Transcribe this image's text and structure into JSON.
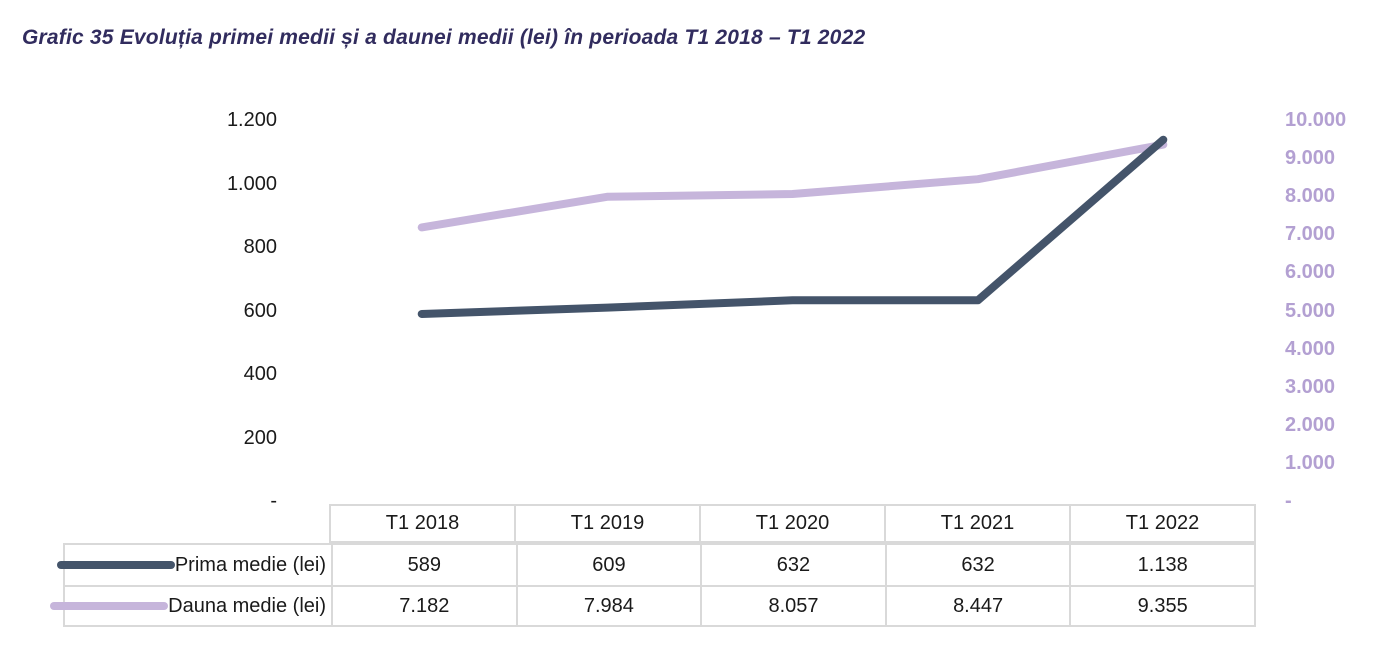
{
  "title": {
    "text": "Grafic 35 Evoluția primei medii și a daunei medii (lei) în perioada T1 2018 – T1 2022",
    "color": "#312c5e"
  },
  "chart_data": {
    "type": "line",
    "title": "Grafic 35 Evoluția primei medii și a daunei medii (lei) în perioada T1 2018 – T1 2022",
    "categories": [
      "T1 2018",
      "T1 2019",
      "T1 2020",
      "T1 2021",
      "T1 2022"
    ],
    "series": [
      {
        "name": "Prima medie (lei)",
        "axis": "left",
        "color": "#44546a",
        "values": [
          589,
          609,
          632,
          632,
          1138
        ],
        "value_labels": [
          "589",
          "609",
          "632",
          "632",
          "1.138"
        ]
      },
      {
        "name": "Dauna medie (lei)",
        "axis": "right",
        "color": "#c6b5db",
        "values": [
          7182,
          7984,
          8057,
          8447,
          9355
        ],
        "value_labels": [
          "7.182",
          "7.984",
          "8.057",
          "8.447",
          "9.355"
        ]
      }
    ],
    "left_axis": {
      "min": 0,
      "max": 1200,
      "step": 200,
      "tick_labels": [
        "-",
        "200",
        "400",
        "600",
        "800",
        "1.000",
        "1.200"
      ],
      "color": "#1a1a1a"
    },
    "right_axis": {
      "min": 0,
      "max": 10000,
      "step": 1000,
      "tick_labels": [
        "-",
        "1.000",
        "2.000",
        "3.000",
        "4.000",
        "5.000",
        "6.000",
        "7.000",
        "8.000",
        "9.000",
        "10.000"
      ],
      "color": "#b3a0d2"
    },
    "grid": false,
    "legend_position": "table-left",
    "table_as_legend": true
  }
}
